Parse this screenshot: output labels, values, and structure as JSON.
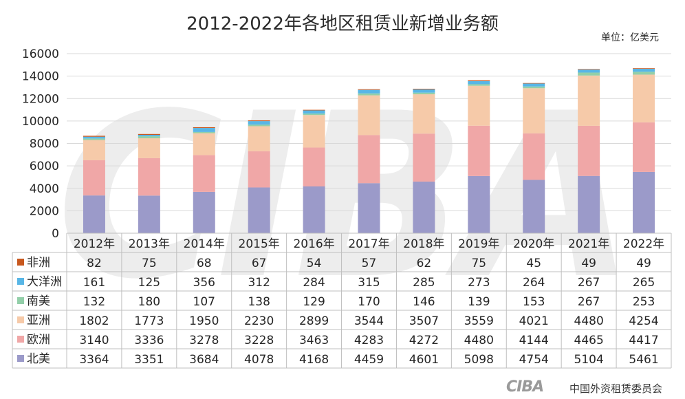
{
  "page": {
    "title": "2012-2022年各地区租赁业新增业务额",
    "unit_note": "单位：亿美元",
    "watermark_text": "CIBA",
    "footer_logo_text": "CIBA",
    "footer_org": "中国外资租赁委员会"
  },
  "chart_data": {
    "type": "bar",
    "stacked": true,
    "title": "2012-2022年各地区租赁业新增业务额",
    "xlabel": "",
    "ylabel": "",
    "ylim": [
      0,
      16000
    ],
    "yticks": [
      0,
      2000,
      4000,
      6000,
      8000,
      10000,
      12000,
      14000,
      16000
    ],
    "grid": true,
    "legend_placement": "data-table-left",
    "categories": [
      "2012年",
      "2013年",
      "2014年",
      "2015年",
      "2016年",
      "2017年",
      "2018年",
      "2019年",
      "2020年",
      "2021年",
      "2022年"
    ],
    "series": [
      {
        "name": "北美",
        "color": "#9b9ac9",
        "values": [
          3364,
          3351,
          3684,
          4078,
          4168,
          4459,
          4601,
          5098,
          4754,
          5104,
          5461
        ]
      },
      {
        "name": "欧洲",
        "color": "#f0a7a7",
        "values": [
          3140,
          3336,
          3278,
          3228,
          3463,
          4283,
          4272,
          4480,
          4144,
          4465,
          4417
        ]
      },
      {
        "name": "亚洲",
        "color": "#f6caa9",
        "values": [
          1802,
          1773,
          1950,
          2230,
          2899,
          3544,
          3507,
          3559,
          4021,
          4480,
          4254
        ]
      },
      {
        "name": "南美",
        "color": "#93cfa9",
        "values": [
          132,
          180,
          107,
          138,
          129,
          170,
          146,
          139,
          153,
          267,
          253
        ]
      },
      {
        "name": "大洋洲",
        "color": "#58b6e6",
        "values": [
          161,
          125,
          356,
          312,
          284,
          315,
          285,
          273,
          264,
          267,
          265
        ]
      },
      {
        "name": "非洲",
        "color": "#c8581e",
        "values": [
          82,
          75,
          68,
          67,
          54,
          57,
          62,
          75,
          45,
          49,
          49
        ]
      }
    ],
    "table_row_order": [
      "非洲",
      "大洋洲",
      "南美",
      "亚洲",
      "欧洲",
      "北美"
    ]
  }
}
